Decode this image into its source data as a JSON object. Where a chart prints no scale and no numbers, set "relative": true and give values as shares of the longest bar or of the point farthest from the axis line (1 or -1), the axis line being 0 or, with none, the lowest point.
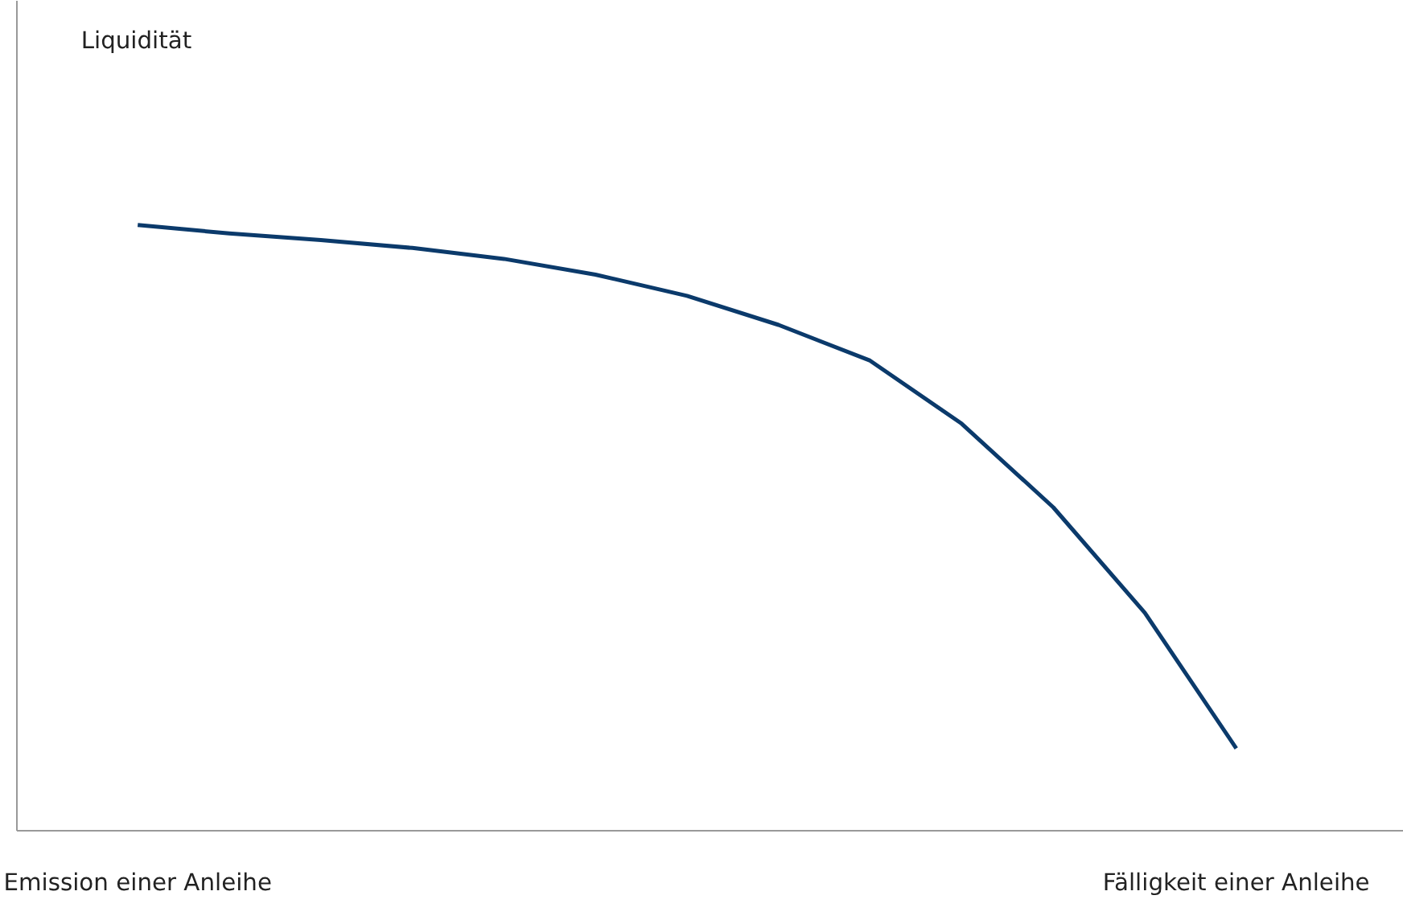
{
  "chart_data": {
    "type": "line",
    "annotations": [
      "Liquidität"
    ],
    "relative": true,
    "categories": [
      "Emission einer Anleihe",
      null,
      null,
      null,
      null,
      null,
      null,
      null,
      null,
      null,
      null,
      null,
      "Fälligkeit einer Anleihe"
    ],
    "series": [
      {
        "color": "#0b3a6b",
        "values": [
          1.0,
          0.986,
          0.975,
          0.962,
          0.944,
          0.918,
          0.883,
          0.835,
          0.776,
          0.672,
          0.534,
          0.36,
          0.136
        ]
      }
    ],
    "tick_labels": "x",
    "grid": false,
    "marker": "none",
    "line_style": "solid"
  }
}
